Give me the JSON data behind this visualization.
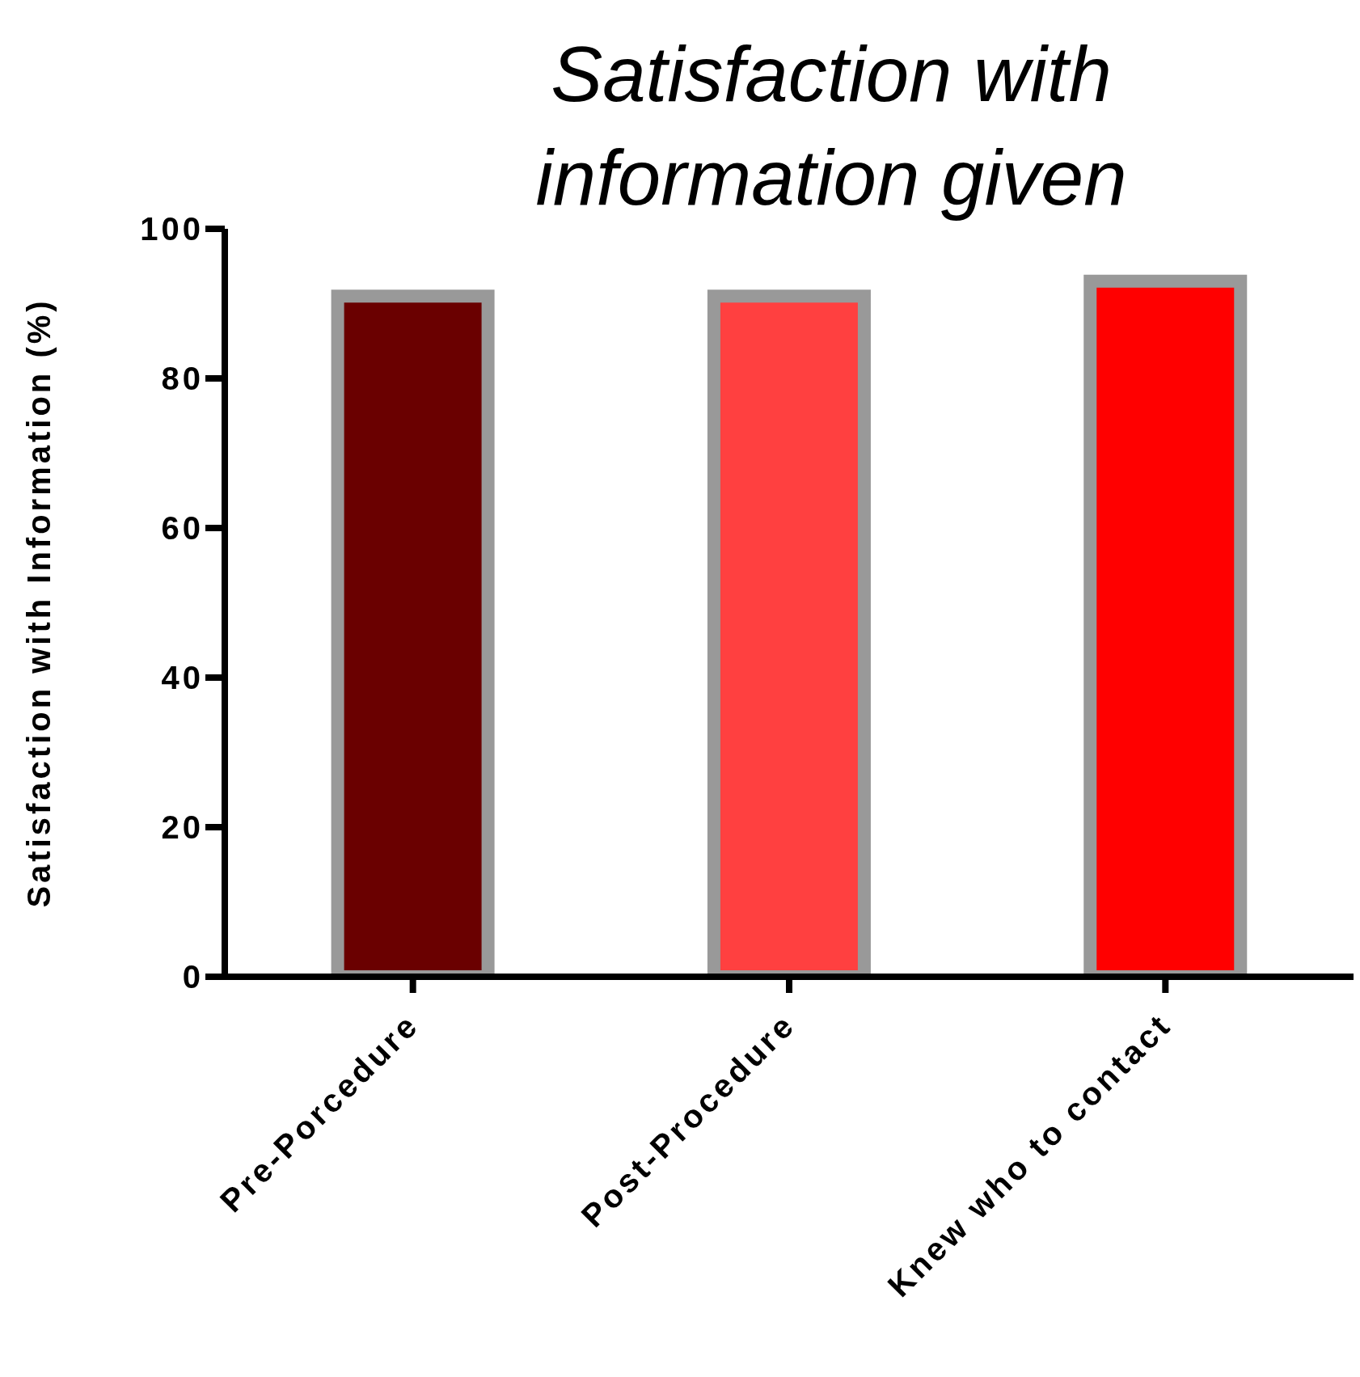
{
  "chart_data": {
    "type": "bar",
    "title": "Satisfaction with information given",
    "ylabel": "Satisfaction with Information (%)",
    "categories": [
      "Pre-Porcedure",
      "Post-Procedure",
      "Knew who to contact"
    ],
    "values": [
      91,
      91,
      93
    ],
    "colors": [
      "#6a0000",
      "#ff4040",
      "#ff0000"
    ],
    "ylim": [
      0,
      100
    ],
    "yticks": [
      0,
      20,
      40,
      60,
      80,
      100
    ],
    "grid": false,
    "legend": false
  }
}
